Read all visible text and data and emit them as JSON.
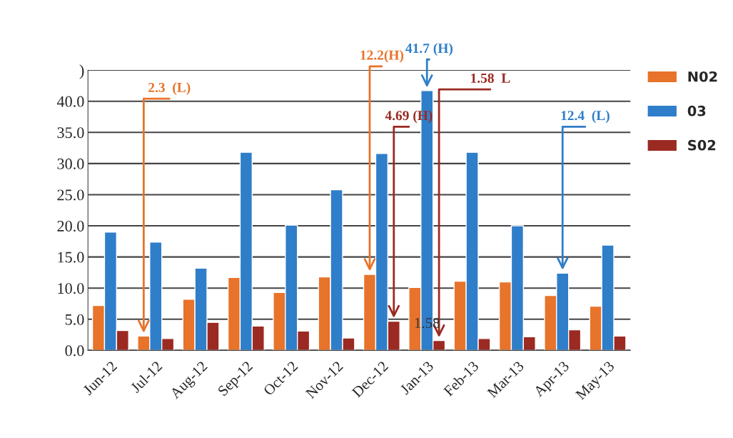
{
  "chart_data": {
    "type": "bar",
    "categories": [
      "Jun-12",
      "Jul-12",
      "Aug-12",
      "Sep-12",
      "Oct-12",
      "Nov-12",
      "Dec-12",
      "Jan-13",
      "Feb-13",
      "Mar-13",
      "Apr-13",
      "May-13"
    ],
    "series": [
      {
        "name": "N02",
        "color": "#e8732a",
        "values": [
          7.2,
          2.3,
          8.2,
          11.7,
          9.3,
          11.8,
          12.2,
          10.1,
          11.1,
          11.0,
          8.8,
          7.1
        ]
      },
      {
        "name": "03",
        "color": "#2f7ec9",
        "values": [
          19.0,
          17.4,
          13.2,
          31.8,
          20.1,
          25.8,
          31.6,
          41.7,
          31.8,
          20.0,
          12.4,
          16.9
        ]
      },
      {
        "name": "S02",
        "color": "#9b2a22",
        "values": [
          3.2,
          1.9,
          4.5,
          3.9,
          3.1,
          2.0,
          4.69,
          1.58,
          1.9,
          2.2,
          3.3,
          2.3
        ]
      }
    ],
    "ylim": [
      0,
      45
    ],
    "yticks": [
      {
        "value": 0,
        "label": "0.0"
      },
      {
        "value": 5,
        "label": "5.0"
      },
      {
        "value": 10,
        "label": "10.0"
      },
      {
        "value": 15,
        "label": "15.0"
      },
      {
        "value": 20,
        "label": "20.0"
      },
      {
        "value": 25,
        "label": "25.0"
      },
      {
        "value": 30,
        "label": "30.0"
      },
      {
        "value": 35,
        "label": "35.0"
      },
      {
        "value": 40,
        "label": "40.0"
      },
      {
        "value": 45,
        "label": ")"
      }
    ],
    "grid": "y",
    "legend": "right",
    "annotations": [
      "2.3  (L)",
      "12.2(H)",
      {
        "text": "41.7 (H)",
        "x": "Jan-13",
        "y": 41.7
      },
      "4.69 (H)",
      "1.58  L",
      {
        "text": "12.4  (L)",
        "x": "Apr-13",
        "y": 12.4
      },
      "1.58"
    ]
  }
}
